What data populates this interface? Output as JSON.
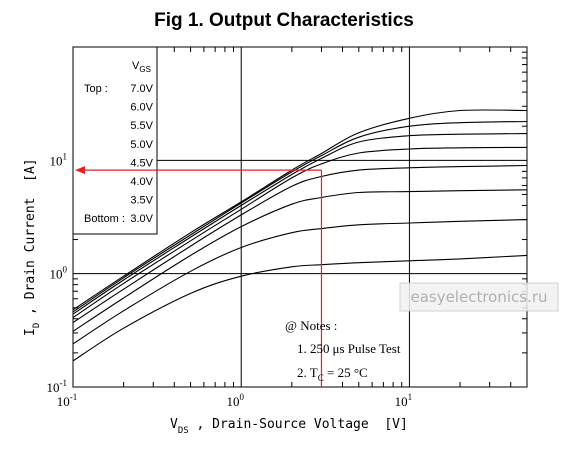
{
  "chart_data": {
    "type": "line",
    "title": "Fig 1.  Output Characteristics",
    "xlabel": {
      "main": "V",
      "sub": "DS",
      "rest": " , Drain-Source Voltage  [V]"
    },
    "ylabel": {
      "main": "I",
      "sub": "D",
      "rest": " , Drain Current  [A]"
    },
    "x_scale": "log",
    "y_scale": "log",
    "xlim": [
      0.1,
      50
    ],
    "ylim": [
      0.1,
      100
    ],
    "x_ticks": [
      {
        "base": "10",
        "exp": "-1",
        "value": 0.1
      },
      {
        "base": "10",
        "exp": "0",
        "value": 1
      },
      {
        "base": "10",
        "exp": "1",
        "value": 10
      }
    ],
    "y_ticks": [
      {
        "base": "10",
        "exp": "-1",
        "value": 0.1
      },
      {
        "base": "10",
        "exp": "0",
        "value": 1
      },
      {
        "base": "10",
        "exp": "1",
        "value": 10
      }
    ],
    "grid": true,
    "legend": {
      "header_main": "V",
      "header_sub": "GS",
      "rows": [
        {
          "prefix": "Top :",
          "value": "7.0V"
        },
        {
          "prefix": "",
          "value": "6.0V"
        },
        {
          "prefix": "",
          "value": "5.5V"
        },
        {
          "prefix": "",
          "value": "5.0V"
        },
        {
          "prefix": "",
          "value": "4.5V"
        },
        {
          "prefix": "",
          "value": "4.0V"
        },
        {
          "prefix": "",
          "value": "3.5V"
        },
        {
          "prefix": "Bottom :",
          "value": "3.0V"
        }
      ]
    },
    "x": [
      0.1,
      0.2,
      0.5,
      1,
      2,
      3,
      5,
      10,
      20,
      50
    ],
    "series": [
      {
        "name": "7.0V",
        "values": [
          0.48,
          0.95,
          2.3,
          4.3,
          8.2,
          11.5,
          17.5,
          23.5,
          27.5,
          27.5
        ]
      },
      {
        "name": "6.0V",
        "values": [
          0.46,
          0.92,
          2.2,
          4.2,
          7.9,
          11.0,
          16.0,
          20.0,
          21.5,
          22.0
        ]
      },
      {
        "name": "5.5V",
        "values": [
          0.44,
          0.88,
          2.1,
          4.0,
          7.5,
          10.4,
          14.5,
          16.5,
          17.0,
          17.2
        ]
      },
      {
        "name": "5.0V",
        "values": [
          0.41,
          0.82,
          1.95,
          3.7,
          7.0,
          9.3,
          11.6,
          12.6,
          12.9,
          13.0
        ]
      },
      {
        "name": "4.5V",
        "values": [
          0.37,
          0.73,
          1.75,
          3.3,
          5.9,
          7.2,
          8.2,
          8.6,
          8.8,
          9.0
        ]
      },
      {
        "name": "4.0V",
        "values": [
          0.31,
          0.61,
          1.45,
          2.6,
          4.1,
          4.7,
          5.2,
          5.3,
          5.4,
          5.5
        ]
      },
      {
        "name": "3.5V",
        "values": [
          0.24,
          0.47,
          1.05,
          1.7,
          2.3,
          2.5,
          2.7,
          2.8,
          2.9,
          3.0
        ]
      },
      {
        "name": "3.0V",
        "values": [
          0.17,
          0.33,
          0.67,
          0.95,
          1.15,
          1.2,
          1.25,
          1.3,
          1.35,
          1.45
        ]
      }
    ],
    "marker": {
      "x": 3,
      "y": 8.2,
      "color": "#e8202a"
    },
    "notes": {
      "header": "@ Notes :",
      "line1_a": "1. 250",
      "line1_mu": "μ",
      "line1_b": "s Pulse Test",
      "line2_a": "2. T",
      "line2_sub": "C",
      "line2_b": " = 25 °C"
    },
    "watermark": "easyelectronics.ru"
  }
}
